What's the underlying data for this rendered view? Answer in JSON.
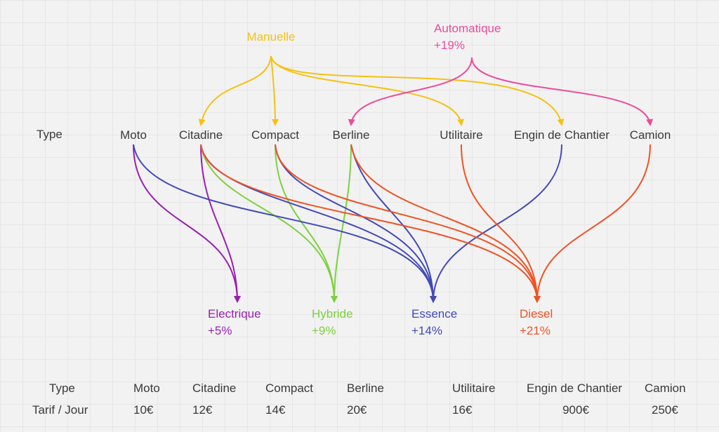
{
  "header": {
    "type_label": "Type"
  },
  "transmissions": {
    "manual": {
      "label": "Manuelle",
      "color": "#f5c211"
    },
    "automatic": {
      "label": "Automatique",
      "surcharge": "+19%",
      "color": "#ea4c9c"
    }
  },
  "vehicle_types": [
    {
      "label": "Moto"
    },
    {
      "label": "Citadine"
    },
    {
      "label": "Compact"
    },
    {
      "label": "Berline"
    },
    {
      "label": "Utilitaire"
    },
    {
      "label": "Engin de Chantier"
    },
    {
      "label": "Camion"
    }
  ],
  "fuels": [
    {
      "label": "Electrique",
      "surcharge": "+5%",
      "color": "#9a1fb2"
    },
    {
      "label": "Hybride",
      "surcharge": "+9%",
      "color": "#7ed03f"
    },
    {
      "label": "Essence",
      "surcharge": "+14%",
      "color": "#4249b8"
    },
    {
      "label": "Diesel",
      "surcharge": "+21%",
      "color": "#ee5223"
    }
  ],
  "tariff_table": {
    "row1_label": "Type",
    "row2_label": "Tarif / Jour",
    "columns": [
      {
        "type": "Moto",
        "price": "10€"
      },
      {
        "type": "Citadine",
        "price": "12€"
      },
      {
        "type": "Compact",
        "price": "14€"
      },
      {
        "type": "Berline",
        "price": "20€"
      },
      {
        "type": "Utilitaire",
        "price": "16€"
      },
      {
        "type": "Engin de Chantier",
        "price": "900€"
      },
      {
        "type": "Camion",
        "price": "250€"
      }
    ]
  }
}
